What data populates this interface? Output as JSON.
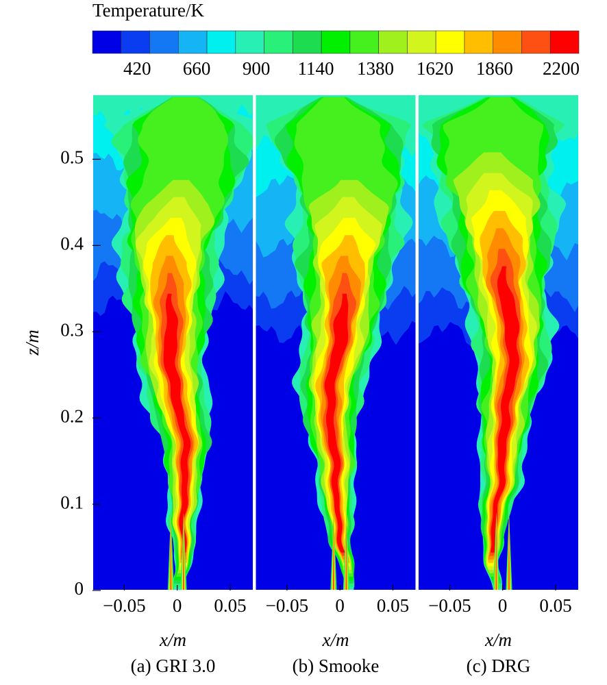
{
  "chart_data": {
    "type": "contour",
    "colorbar": {
      "title": "Temperature/K",
      "colors": [
        "#0000e6",
        "#0a3cf0",
        "#1478f5",
        "#14b4f5",
        "#00f0f0",
        "#28f0b4",
        "#28f078",
        "#1edc50",
        "#00f000",
        "#46f01e",
        "#a0f01e",
        "#d2f51e",
        "#ffff00",
        "#ffbe00",
        "#ff8c00",
        "#ff5014",
        "#ff0000"
      ],
      "clim": [
        240,
        2200
      ],
      "ticks": [
        420,
        660,
        900,
        1140,
        1380,
        1620,
        1860,
        2200
      ]
    },
    "xlim": [
      -0.08,
      0.072
    ],
    "xticks": [
      {
        "value": -0.05,
        "label": "−0.05"
      },
      0,
      0.05
    ],
    "ylim": [
      0,
      0.575
    ],
    "yticks": [
      0,
      0.1,
      0.2,
      0.3,
      0.4,
      0.5
    ],
    "ylabel": "z/m",
    "panels": [
      {
        "title": "(a) GRI 3.0",
        "xlabel": "x/m"
      },
      {
        "title": "(b) Smooke",
        "xlabel": "x/m"
      },
      {
        "title": "(c) DRG",
        "xlabel": "x/m"
      }
    ]
  }
}
